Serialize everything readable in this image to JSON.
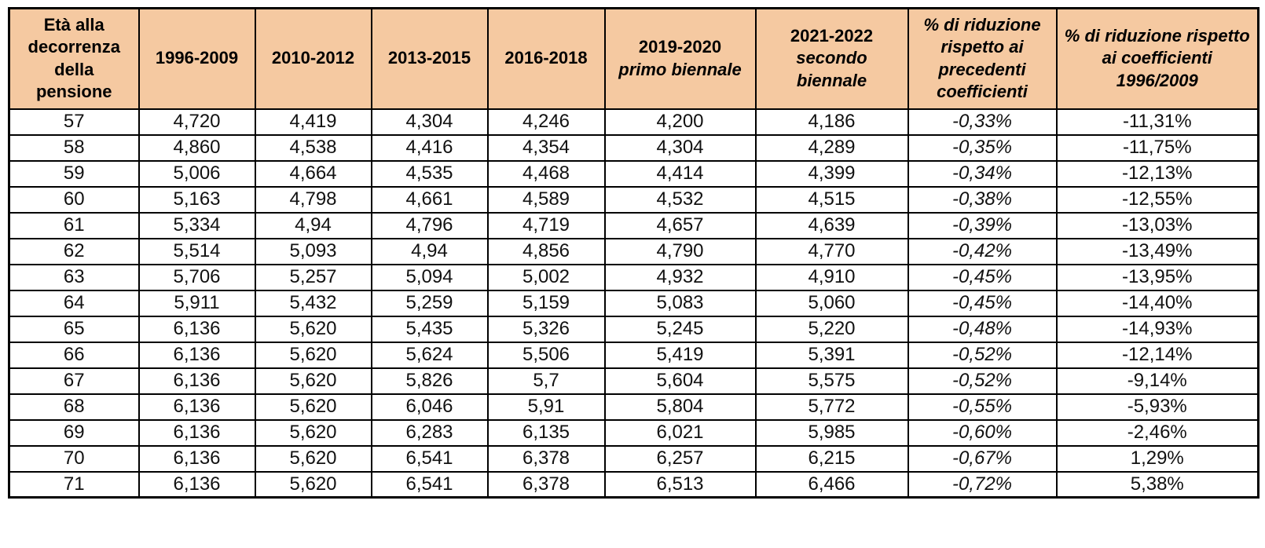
{
  "colors": {
    "header_bg": "#F5C9A1",
    "border": "#000000",
    "cell_bg": "#FFFFFF",
    "text": "#111111"
  },
  "chart_data": {
    "type": "table",
    "title": "",
    "columns": [
      {
        "id": "eta",
        "label": "Età alla decorrenza della pensione",
        "sub": "",
        "pct": false
      },
      {
        "id": "c1996_2009",
        "label": "1996-2009",
        "sub": "",
        "pct": false
      },
      {
        "id": "c2010_2012",
        "label": "2010-2012",
        "sub": "",
        "pct": false
      },
      {
        "id": "c2013_2015",
        "label": "2013-2015",
        "sub": "",
        "pct": false
      },
      {
        "id": "c2016_2018",
        "label": "2016-2018",
        "sub": "",
        "pct": false
      },
      {
        "id": "c2019_2020",
        "label": "2019-2020",
        "sub": "primo biennale",
        "pct": false
      },
      {
        "id": "c2021_2022",
        "label": "2021-2022",
        "sub": "secondo biennale",
        "pct": false
      },
      {
        "id": "rid_prec",
        "label": "% di riduzione rispetto ai precedenti coefficienti",
        "sub": "",
        "pct": true
      },
      {
        "id": "rid_1996",
        "label": "% di riduzione rispetto ai coefficienti 1996/2009",
        "sub": "",
        "pct": true
      }
    ],
    "rows": [
      [
        "57",
        "4,720",
        "4,419",
        "4,304",
        "4,246",
        "4,200",
        "4,186",
        "-0,33%",
        "-11,31%"
      ],
      [
        "58",
        "4,860",
        "4,538",
        "4,416",
        "4,354",
        "4,304",
        "4,289",
        "-0,35%",
        "-11,75%"
      ],
      [
        "59",
        "5,006",
        "4,664",
        "4,535",
        "4,468",
        "4,414",
        "4,399",
        "-0,34%",
        "-12,13%"
      ],
      [
        "60",
        "5,163",
        "4,798",
        "4,661",
        "4,589",
        "4,532",
        "4,515",
        "-0,38%",
        "-12,55%"
      ],
      [
        "61",
        "5,334",
        "4,94",
        "4,796",
        "4,719",
        "4,657",
        "4,639",
        "-0,39%",
        "-13,03%"
      ],
      [
        "62",
        "5,514",
        "5,093",
        "4,94",
        "4,856",
        "4,790",
        "4,770",
        "-0,42%",
        "-13,49%"
      ],
      [
        "63",
        "5,706",
        "5,257",
        "5,094",
        "5,002",
        "4,932",
        "4,910",
        "-0,45%",
        "-13,95%"
      ],
      [
        "64",
        "5,911",
        "5,432",
        "5,259",
        "5,159",
        "5,083",
        "5,060",
        "-0,45%",
        "-14,40%"
      ],
      [
        "65",
        "6,136",
        "5,620",
        "5,435",
        "5,326",
        "5,245",
        "5,220",
        "-0,48%",
        "-14,93%"
      ],
      [
        "66",
        "6,136",
        "5,620",
        "5,624",
        "5,506",
        "5,419",
        "5,391",
        "-0,52%",
        "-12,14%"
      ],
      [
        "67",
        "6,136",
        "5,620",
        "5,826",
        "5,7",
        "5,604",
        "5,575",
        "-0,52%",
        "-9,14%"
      ],
      [
        "68",
        "6,136",
        "5,620",
        "6,046",
        "5,91",
        "5,804",
        "5,772",
        "-0,55%",
        "-5,93%"
      ],
      [
        "69",
        "6,136",
        "5,620",
        "6,283",
        "6,135",
        "6,021",
        "5,985",
        "-0,60%",
        "-2,46%"
      ],
      [
        "70",
        "6,136",
        "5,620",
        "6,541",
        "6,378",
        "6,257",
        "6,215",
        "-0,67%",
        "1,29%"
      ],
      [
        "71",
        "6,136",
        "5,620",
        "6,541",
        "6,378",
        "6,513",
        "6,466",
        "-0,72%",
        "5,38%"
      ]
    ]
  }
}
